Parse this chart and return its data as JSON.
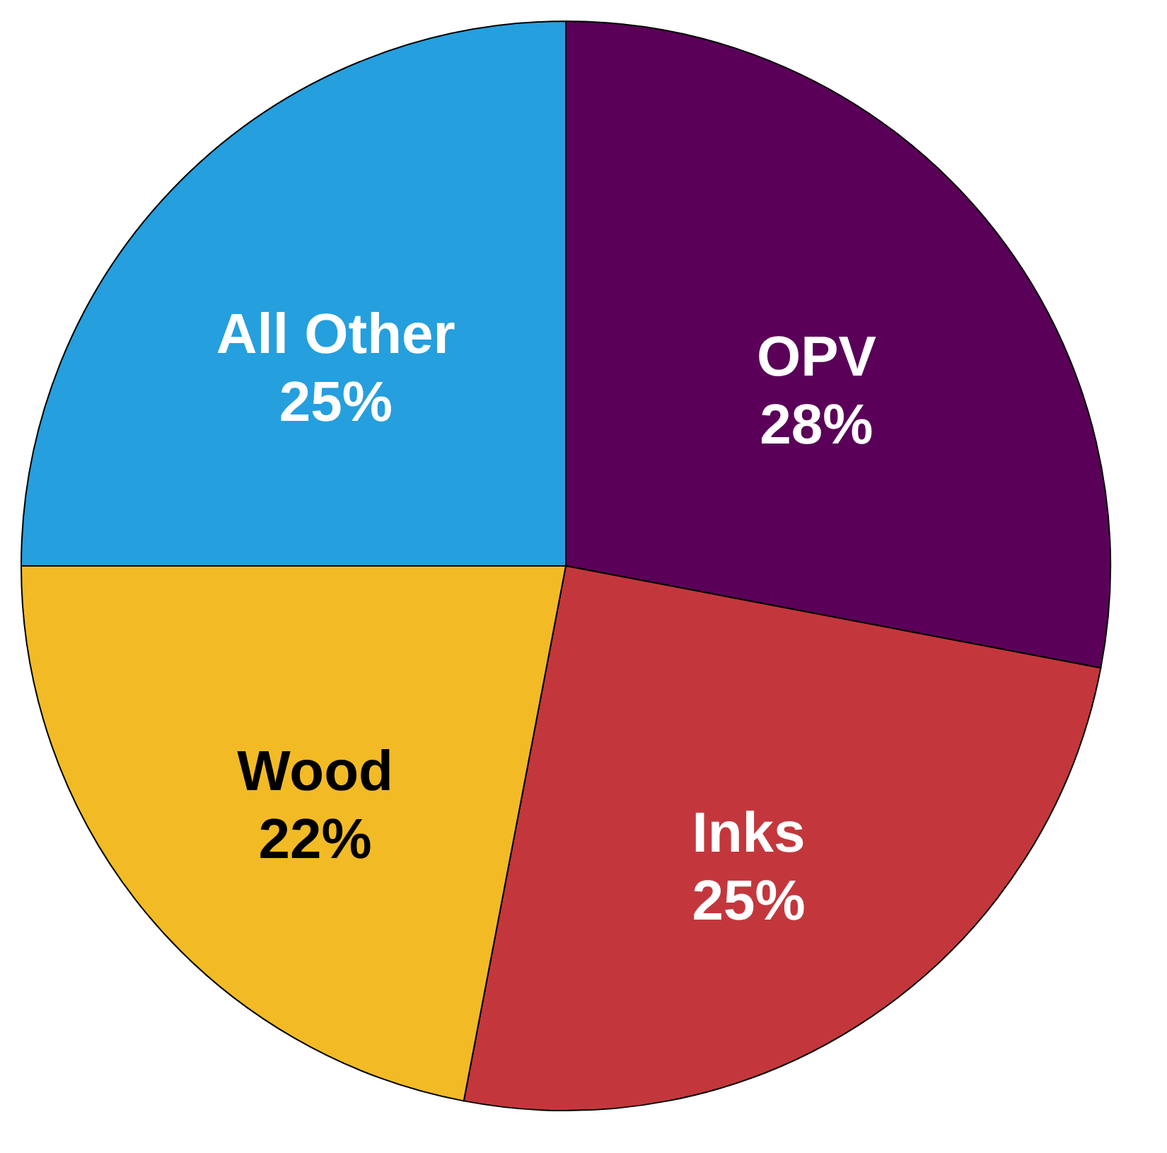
{
  "chart_data": {
    "type": "pie",
    "categories": [
      "OPV",
      "Inks",
      "Wood",
      "All Other"
    ],
    "values": [
      28,
      25,
      22,
      25
    ],
    "colors": [
      "#5a0058",
      "#c3373c",
      "#f2bb25",
      "#259fdd"
    ],
    "value_labels": [
      "28%",
      "25%",
      "22%",
      "25%"
    ],
    "legend": false
  }
}
